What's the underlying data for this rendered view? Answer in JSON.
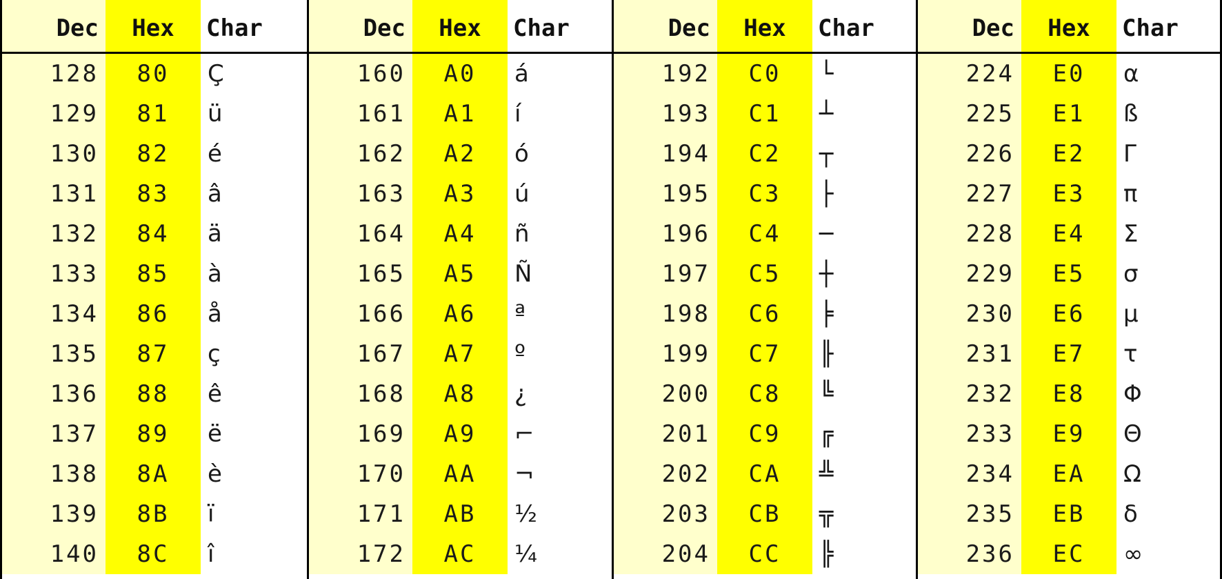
{
  "headers": {
    "dec": "Dec",
    "hex": "Hex",
    "char": "Char"
  },
  "groups": [
    {
      "rows": [
        {
          "dec": "128",
          "hex": "80",
          "char": "Ç"
        },
        {
          "dec": "129",
          "hex": "81",
          "char": "ü"
        },
        {
          "dec": "130",
          "hex": "82",
          "char": "é"
        },
        {
          "dec": "131",
          "hex": "83",
          "char": "â"
        },
        {
          "dec": "132",
          "hex": "84",
          "char": "ä"
        },
        {
          "dec": "133",
          "hex": "85",
          "char": "à"
        },
        {
          "dec": "134",
          "hex": "86",
          "char": "å"
        },
        {
          "dec": "135",
          "hex": "87",
          "char": "ç"
        },
        {
          "dec": "136",
          "hex": "88",
          "char": "ê"
        },
        {
          "dec": "137",
          "hex": "89",
          "char": "ë"
        },
        {
          "dec": "138",
          "hex": "8A",
          "char": "è"
        },
        {
          "dec": "139",
          "hex": "8B",
          "char": "ï"
        },
        {
          "dec": "140",
          "hex": "8C",
          "char": "î"
        }
      ]
    },
    {
      "rows": [
        {
          "dec": "160",
          "hex": "A0",
          "char": "á"
        },
        {
          "dec": "161",
          "hex": "A1",
          "char": "í"
        },
        {
          "dec": "162",
          "hex": "A2",
          "char": "ó"
        },
        {
          "dec": "163",
          "hex": "A3",
          "char": "ú"
        },
        {
          "dec": "164",
          "hex": "A4",
          "char": "ñ"
        },
        {
          "dec": "165",
          "hex": "A5",
          "char": "Ñ"
        },
        {
          "dec": "166",
          "hex": "A6",
          "char": "ª"
        },
        {
          "dec": "167",
          "hex": "A7",
          "char": "º"
        },
        {
          "dec": "168",
          "hex": "A8",
          "char": "¿"
        },
        {
          "dec": "169",
          "hex": "A9",
          "char": "⌐"
        },
        {
          "dec": "170",
          "hex": "AA",
          "char": "¬"
        },
        {
          "dec": "171",
          "hex": "AB",
          "char": "½"
        },
        {
          "dec": "172",
          "hex": "AC",
          "char": "¼"
        }
      ]
    },
    {
      "rows": [
        {
          "dec": "192",
          "hex": "C0",
          "char": "└"
        },
        {
          "dec": "193",
          "hex": "C1",
          "char": "┴"
        },
        {
          "dec": "194",
          "hex": "C2",
          "char": "┬"
        },
        {
          "dec": "195",
          "hex": "C3",
          "char": "├"
        },
        {
          "dec": "196",
          "hex": "C4",
          "char": "─"
        },
        {
          "dec": "197",
          "hex": "C5",
          "char": "┼"
        },
        {
          "dec": "198",
          "hex": "C6",
          "char": "╞"
        },
        {
          "dec": "199",
          "hex": "C7",
          "char": "╟"
        },
        {
          "dec": "200",
          "hex": "C8",
          "char": "╚"
        },
        {
          "dec": "201",
          "hex": "C9",
          "char": "╔"
        },
        {
          "dec": "202",
          "hex": "CA",
          "char": "╩"
        },
        {
          "dec": "203",
          "hex": "CB",
          "char": "╦"
        },
        {
          "dec": "204",
          "hex": "CC",
          "char": "╠"
        }
      ]
    },
    {
      "rows": [
        {
          "dec": "224",
          "hex": "E0",
          "char": "α"
        },
        {
          "dec": "225",
          "hex": "E1",
          "char": "ß"
        },
        {
          "dec": "226",
          "hex": "E2",
          "char": "Γ"
        },
        {
          "dec": "227",
          "hex": "E3",
          "char": "π"
        },
        {
          "dec": "228",
          "hex": "E4",
          "char": "Σ"
        },
        {
          "dec": "229",
          "hex": "E5",
          "char": "σ"
        },
        {
          "dec": "230",
          "hex": "E6",
          "char": "µ"
        },
        {
          "dec": "231",
          "hex": "E7",
          "char": "τ"
        },
        {
          "dec": "232",
          "hex": "E8",
          "char": "Φ"
        },
        {
          "dec": "233",
          "hex": "E9",
          "char": "Θ"
        },
        {
          "dec": "234",
          "hex": "EA",
          "char": "Ω"
        },
        {
          "dec": "235",
          "hex": "EB",
          "char": "δ"
        },
        {
          "dec": "236",
          "hex": "EC",
          "char": "∞"
        }
      ]
    }
  ],
  "colors": {
    "dec_bg": "#ffffcc",
    "hex_bg": "#ffff00",
    "char_bg": "#ffffff",
    "border": "#000000"
  }
}
